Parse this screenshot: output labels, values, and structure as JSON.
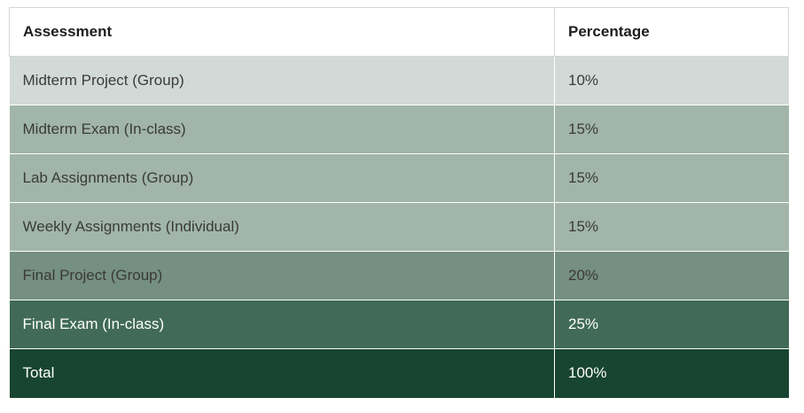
{
  "table": {
    "headers": {
      "assessment": "Assessment",
      "percentage": "Percentage"
    },
    "rows": [
      {
        "assessment": "Midterm Project (Group)",
        "percentage": "10%",
        "shade": "shade-1"
      },
      {
        "assessment": "Midterm Exam (In-class)",
        "percentage": "15%",
        "shade": "shade-2"
      },
      {
        "assessment": "Lab Assignments (Group)",
        "percentage": "15%",
        "shade": "shade-2"
      },
      {
        "assessment": "Weekly Assignments (Individual)",
        "percentage": "15%",
        "shade": "shade-2"
      },
      {
        "assessment": "Final Project (Group)",
        "percentage": "20%",
        "shade": "shade-3"
      },
      {
        "assessment": "Final Exam (In-class)",
        "percentage": "25%",
        "shade": "shade-4"
      },
      {
        "assessment": "Total",
        "percentage": "100%",
        "shade": "shade-5"
      }
    ]
  },
  "colors": {
    "shade-1": "#d2dad7",
    "shade-2": "#a1b5ab",
    "shade-3": "#758f82",
    "shade-4": "#416a59",
    "shade-5": "#184432"
  }
}
